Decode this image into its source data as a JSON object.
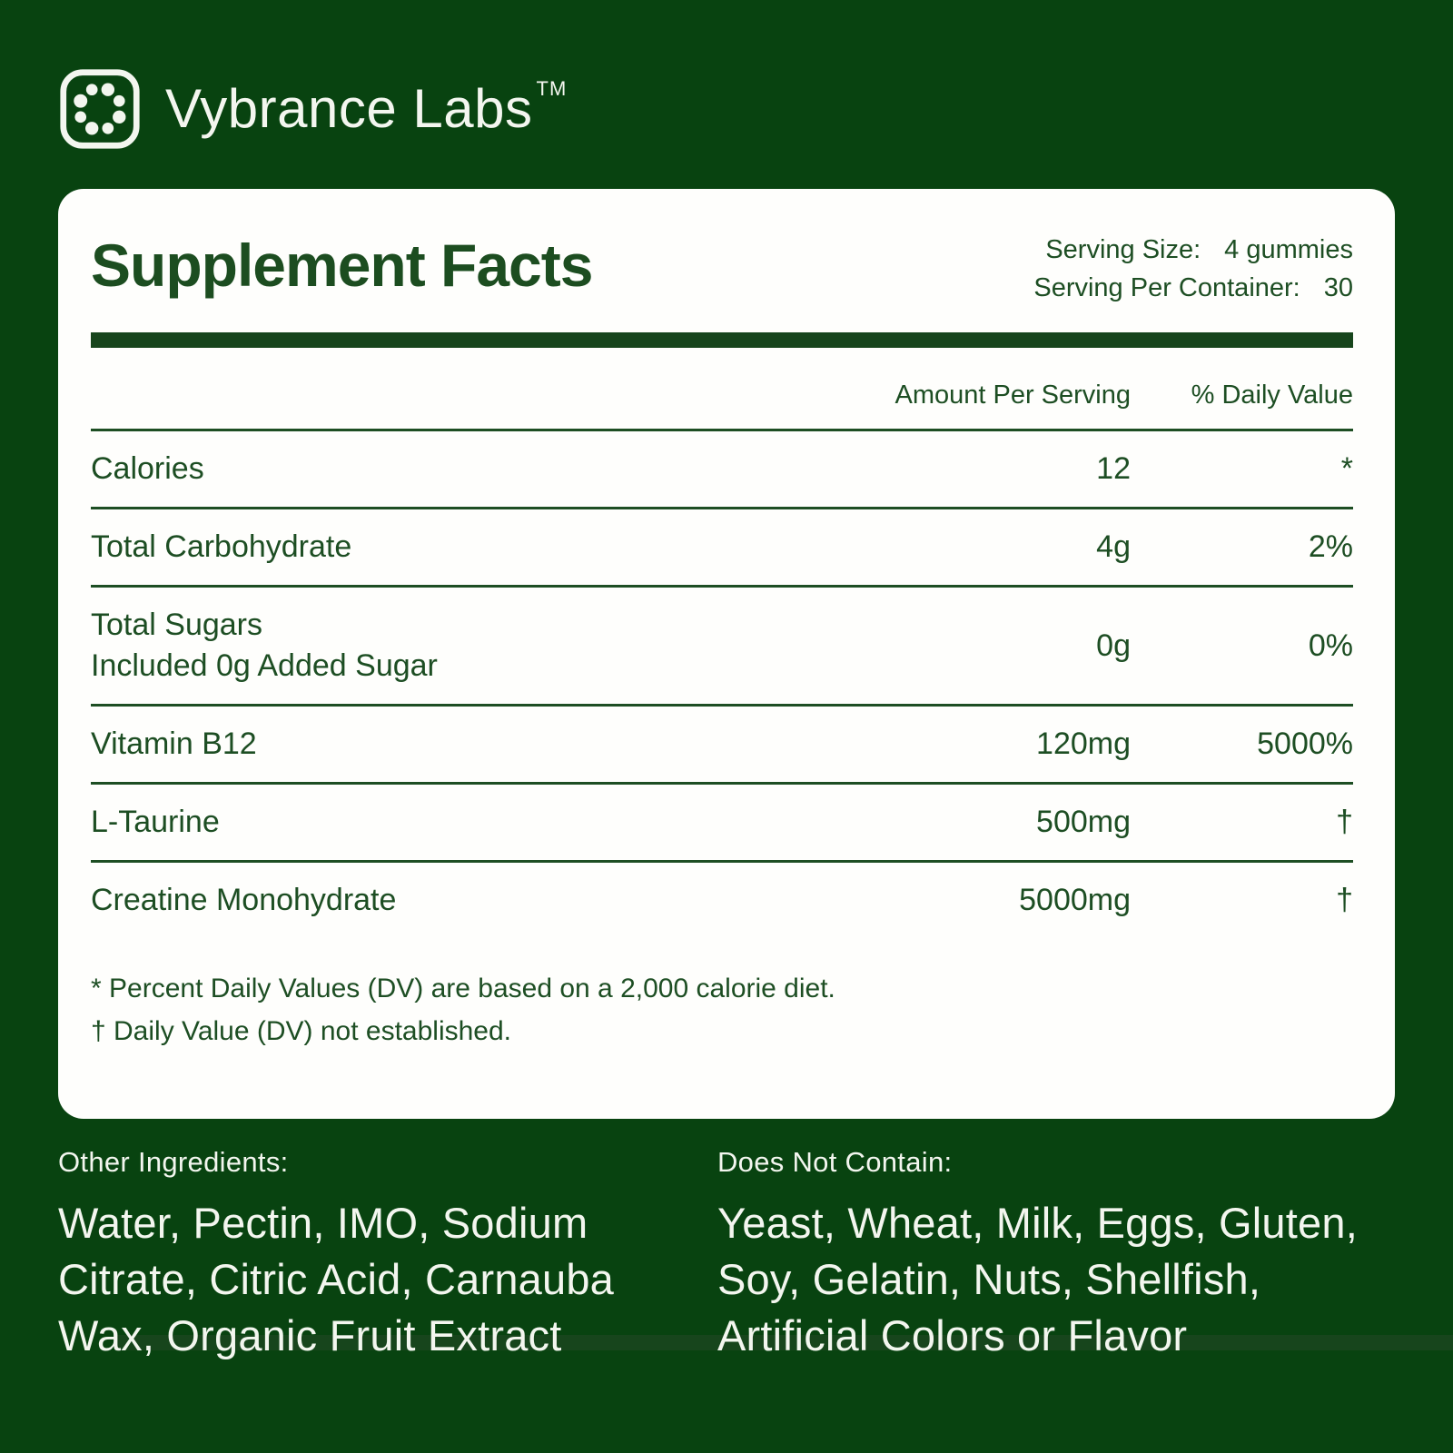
{
  "brand": {
    "name": "Vybrance Labs",
    "trademark": "TM"
  },
  "panel": {
    "title": "Supplement Facts",
    "serving_size_label": "Serving Size:",
    "serving_size_value": "4 gummies",
    "servings_per_container_label": "Serving Per Container:",
    "servings_per_container_value": "30",
    "columns": {
      "amount": "Amount Per Serving",
      "daily_value": "% Daily Value"
    },
    "rows": [
      {
        "name_lines": [
          "Calories"
        ],
        "amount": "12",
        "daily_value": "*"
      },
      {
        "name_lines": [
          "Total Carbohydrate"
        ],
        "amount": "4g",
        "daily_value": "2%"
      },
      {
        "name_lines": [
          "Total Sugars",
          "Included 0g Added Sugar"
        ],
        "amount": "0g",
        "daily_value": "0%"
      },
      {
        "name_lines": [
          "Vitamin B12"
        ],
        "amount": "120mg",
        "daily_value": "5000%"
      },
      {
        "name_lines": [
          "L-Taurine"
        ],
        "amount": "500mg",
        "daily_value": "†"
      },
      {
        "name_lines": [
          "Creatine Monohydrate"
        ],
        "amount": "5000mg",
        "daily_value": "†"
      }
    ],
    "footnotes": [
      "* Percent Daily Values (DV) are based on a 2,000 calorie diet.",
      "† Daily Value (DV) not established."
    ]
  },
  "bottom": {
    "other_ingredients_label": "Other Ingredients:",
    "other_ingredients_body": "Water, Pectin, IMO, Sodium Citrate, Citric Acid, Carnauba Wax, Organic Fruit Extract",
    "does_not_contain_label": "Does Not Contain:",
    "does_not_contain_body": "Yeast, Wheat, Milk, Eggs, Gluten, Soy, Gelatin, Nuts, Shellfish, Artificial Colors or Flavor"
  },
  "colors": {
    "background_green": "#084310",
    "card_background": "#fefefc",
    "text_green": "#1d4e23",
    "bar_green": "#17451c",
    "text_offwhite": "#f3f6ef"
  }
}
